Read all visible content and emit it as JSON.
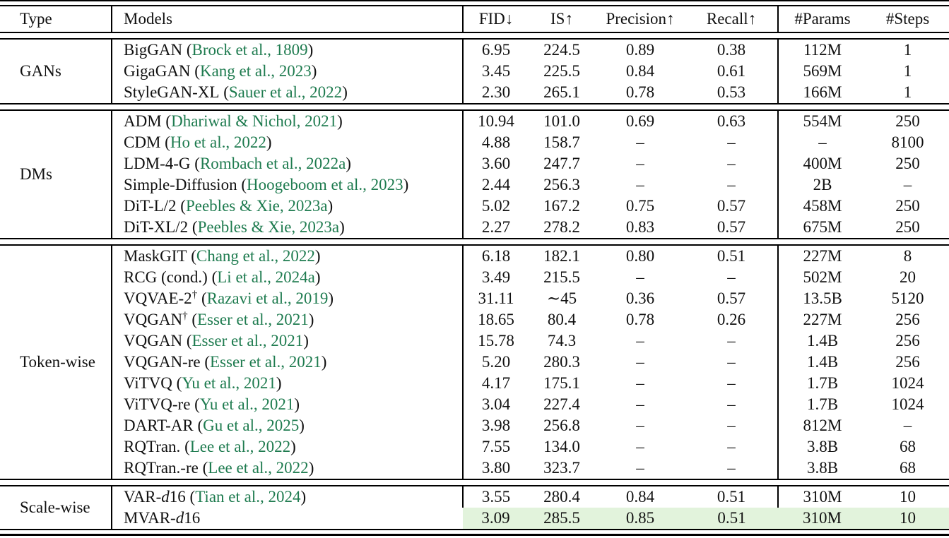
{
  "colors": {
    "citation_green": "#1e7b4f",
    "highlight_green": "#e2f3dc",
    "rule_black": "#000000",
    "text": "#111111"
  },
  "columns": [
    "Type",
    "Models",
    "FID↓",
    "IS↑",
    "Precision↑",
    "Recall↑",
    "#Params",
    "#Steps"
  ],
  "groups": [
    {
      "type": "GANs",
      "rows": [
        {
          "name": "BigGAN",
          "iname": "",
          "name2": "",
          "sup": "",
          "open": " (",
          "cite": "Brock et al., 1809",
          "close": ")",
          "fid": "6.95",
          "is": "224.5",
          "precision": "0.89",
          "recall": "0.38",
          "params": "112M",
          "steps": "1",
          "highlight": false
        },
        {
          "name": "GigaGAN",
          "iname": "",
          "name2": "",
          "sup": "",
          "open": " (",
          "cite": "Kang et al., 2023",
          "close": ")",
          "fid": "3.45",
          "is": "225.5",
          "precision": "0.84",
          "recall": "0.61",
          "params": "569M",
          "steps": "1",
          "highlight": false
        },
        {
          "name": "StyleGAN-XL",
          "iname": "",
          "name2": "",
          "sup": "",
          "open": " (",
          "cite": "Sauer et al., 2022",
          "close": ")",
          "fid": "2.30",
          "is": "265.1",
          "precision": "0.78",
          "recall": "0.53",
          "params": "166M",
          "steps": "1",
          "highlight": false
        }
      ]
    },
    {
      "type": "DMs",
      "rows": [
        {
          "name": "ADM",
          "iname": "",
          "name2": "",
          "sup": "",
          "open": " (",
          "cite": "Dhariwal & Nichol, 2021",
          "close": ")",
          "fid": "10.94",
          "is": "101.0",
          "precision": "0.69",
          "recall": "0.63",
          "params": "554M",
          "steps": "250",
          "highlight": false
        },
        {
          "name": "CDM",
          "iname": "",
          "name2": "",
          "sup": "",
          "open": " (",
          "cite": "Ho et al., 2022",
          "close": ")",
          "fid": "4.88",
          "is": "158.7",
          "precision": "–",
          "recall": "–",
          "params": "–",
          "steps": "8100",
          "highlight": false
        },
        {
          "name": "LDM-4-G",
          "iname": "",
          "name2": "",
          "sup": "",
          "open": " (",
          "cite": "Rombach et al., 2022a",
          "close": ")",
          "fid": "3.60",
          "is": "247.7",
          "precision": "–",
          "recall": "–",
          "params": "400M",
          "steps": "250",
          "highlight": false
        },
        {
          "name": "Simple-Diffusion",
          "iname": "",
          "name2": "",
          "sup": "",
          "open": " (",
          "cite": "Hoogeboom et al., 2023",
          "close": ")",
          "fid": "2.44",
          "is": "256.3",
          "precision": "–",
          "recall": "–",
          "params": "2B",
          "steps": "–",
          "highlight": false
        },
        {
          "name": "DiT-L/2",
          "iname": "",
          "name2": "",
          "sup": "",
          "open": " (",
          "cite": "Peebles & Xie, 2023a",
          "close": ")",
          "fid": "5.02",
          "is": "167.2",
          "precision": "0.75",
          "recall": "0.57",
          "params": "458M",
          "steps": "250",
          "highlight": false
        },
        {
          "name": "DiT-XL/2",
          "iname": "",
          "name2": "",
          "sup": "",
          "open": " (",
          "cite": "Peebles & Xie, 2023a",
          "close": ")",
          "fid": "2.27",
          "is": "278.2",
          "precision": "0.83",
          "recall": "0.57",
          "params": "675M",
          "steps": "250",
          "highlight": false
        }
      ]
    },
    {
      "type": "Token-wise",
      "rows": [
        {
          "name": "MaskGIT",
          "iname": "",
          "name2": "",
          "sup": "",
          "open": " (",
          "cite": "Chang et al., 2022",
          "close": ")",
          "fid": "6.18",
          "is": "182.1",
          "precision": "0.80",
          "recall": "0.51",
          "params": "227M",
          "steps": "8",
          "highlight": false
        },
        {
          "name": "RCG (cond.)",
          "iname": "",
          "name2": "",
          "sup": "",
          "open": " (",
          "cite": "Li et al., 2024a",
          "close": ")",
          "fid": "3.49",
          "is": "215.5",
          "precision": "–",
          "recall": "–",
          "params": "502M",
          "steps": "20",
          "highlight": false
        },
        {
          "name": "VQVAE-2",
          "iname": "",
          "name2": "",
          "sup": "†",
          "open": " (",
          "cite": "Razavi et al., 2019",
          "close": ")",
          "fid": "31.11",
          "is": "∼45",
          "precision": "0.36",
          "recall": "0.57",
          "params": "13.5B",
          "steps": "5120",
          "highlight": false
        },
        {
          "name": "VQGAN",
          "iname": "",
          "name2": "",
          "sup": "†",
          "open": " (",
          "cite": "Esser et al., 2021",
          "close": ")",
          "fid": "18.65",
          "is": "80.4",
          "precision": "0.78",
          "recall": "0.26",
          "params": "227M",
          "steps": "256",
          "highlight": false
        },
        {
          "name": "VQGAN",
          "iname": "",
          "name2": "",
          "sup": "",
          "open": " (",
          "cite": "Esser et al., 2021",
          "close": ")",
          "fid": "15.78",
          "is": "74.3",
          "precision": "–",
          "recall": "–",
          "params": "1.4B",
          "steps": "256",
          "highlight": false
        },
        {
          "name": "VQGAN-re",
          "iname": "",
          "name2": "",
          "sup": "",
          "open": " (",
          "cite": "Esser et al., 2021",
          "close": ")",
          "fid": "5.20",
          "is": "280.3",
          "precision": "–",
          "recall": "–",
          "params": "1.4B",
          "steps": "256",
          "highlight": false
        },
        {
          "name": "ViTVQ",
          "iname": "",
          "name2": "",
          "sup": "",
          "open": " (",
          "cite": "Yu et al., 2021",
          "close": ")",
          "fid": "4.17",
          "is": "175.1",
          "precision": "–",
          "recall": "–",
          "params": "1.7B",
          "steps": "1024",
          "highlight": false
        },
        {
          "name": "ViTVQ-re",
          "iname": "",
          "name2": "",
          "sup": "",
          "open": " (",
          "cite": "Yu et al., 2021",
          "close": ")",
          "fid": "3.04",
          "is": "227.4",
          "precision": "–",
          "recall": "–",
          "params": "1.7B",
          "steps": "1024",
          "highlight": false
        },
        {
          "name": "DART-AR",
          "iname": "",
          "name2": "",
          "sup": "",
          "open": " (",
          "cite": "Gu et al., 2025",
          "close": ")",
          "fid": "3.98",
          "is": "256.8",
          "precision": "–",
          "recall": "–",
          "params": "812M",
          "steps": "–",
          "highlight": false
        },
        {
          "name": "RQTran.",
          "iname": "",
          "name2": "",
          "sup": "",
          "open": " (",
          "cite": "Lee et al., 2022",
          "close": ")",
          "fid": "7.55",
          "is": "134.0",
          "precision": "–",
          "recall": "–",
          "params": "3.8B",
          "steps": "68",
          "highlight": false
        },
        {
          "name": "RQTran.-re",
          "iname": "",
          "name2": "",
          "sup": "",
          "open": " (",
          "cite": "Lee et al., 2022",
          "close": ")",
          "fid": "3.80",
          "is": "323.7",
          "precision": "–",
          "recall": "–",
          "params": "3.8B",
          "steps": "68",
          "highlight": false
        }
      ]
    },
    {
      "type": "Scale-wise",
      "rows": [
        {
          "name": "VAR-",
          "iname": "d",
          "name2": "16",
          "sup": "",
          "open": " (",
          "cite": "Tian et al., 2024",
          "close": ")",
          "fid": "3.55",
          "is": "280.4",
          "precision": "0.84",
          "recall": "0.51",
          "params": "310M",
          "steps": "10",
          "highlight": false
        },
        {
          "name": "MVAR-",
          "iname": "d",
          "name2": "16",
          "sup": "",
          "open": "",
          "cite": "",
          "close": "",
          "fid": "3.09",
          "is": "285.5",
          "precision": "0.85",
          "recall": "0.51",
          "params": "310M",
          "steps": "10",
          "highlight": true
        }
      ]
    }
  ]
}
